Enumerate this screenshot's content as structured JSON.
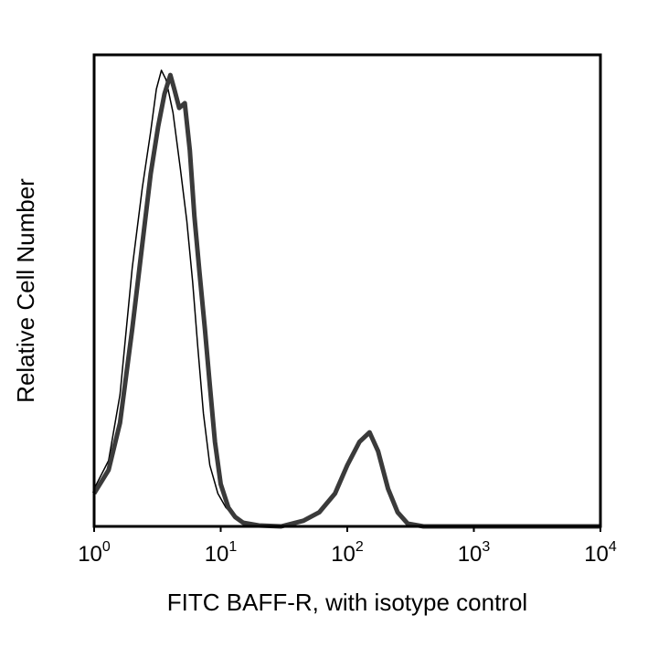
{
  "chart_data": {
    "type": "line",
    "title": "",
    "xlabel": "FITC BAFF-R, with isotype control",
    "ylabel": "Relative Cell Number",
    "x_scale": "log",
    "xlim": [
      1,
      10000
    ],
    "ylim": [
      0,
      100
    ],
    "grid": false,
    "x_ticks": [
      {
        "value": 1,
        "base": "10",
        "exp": "0"
      },
      {
        "value": 10,
        "base": "10",
        "exp": "1"
      },
      {
        "value": 100,
        "base": "10",
        "exp": "2"
      },
      {
        "value": 1000,
        "base": "10",
        "exp": "3"
      },
      {
        "value": 10000,
        "base": "10",
        "exp": "4"
      }
    ],
    "series": [
      {
        "role": "isotype-control",
        "color": "#000000",
        "weight": "thin",
        "x": [
          1.0,
          1.3,
          1.6,
          2.0,
          2.4,
          2.8,
          3.1,
          3.4,
          3.7,
          4.2,
          4.8,
          5.4,
          6.0,
          6.6,
          7.3,
          8.2,
          9.5,
          11,
          13,
          16,
          20,
          30,
          100,
          1000,
          10000
        ],
        "y": [
          8,
          14,
          28,
          55,
          72,
          84,
          93,
          97,
          95,
          88,
          76,
          65,
          52,
          38,
          24,
          13,
          7,
          4,
          2,
          0.8,
          0.3,
          0,
          0,
          0,
          0
        ]
      },
      {
        "role": "BAFF-R",
        "color": "#3a3a3a",
        "weight": "thick",
        "x": [
          1.0,
          1.3,
          1.6,
          2.0,
          2.4,
          2.8,
          3.2,
          3.6,
          4.0,
          4.3,
          4.7,
          5.2,
          5.7,
          6.2,
          6.8,
          7.5,
          8.2,
          9.0,
          10,
          11.5,
          13,
          15,
          20,
          30,
          45,
          60,
          80,
          100,
          125,
          150,
          175,
          210,
          250,
          300,
          400,
          1000,
          10000
        ],
        "y": [
          7,
          12,
          22,
          42,
          60,
          75,
          85,
          92,
          96,
          93,
          89,
          90,
          80,
          66,
          54,
          42,
          30,
          18,
          9,
          4,
          2,
          0.8,
          0.2,
          0,
          1.2,
          3,
          7,
          13,
          18,
          20,
          16,
          8,
          3,
          0.6,
          0,
          0,
          0
        ]
      }
    ]
  }
}
